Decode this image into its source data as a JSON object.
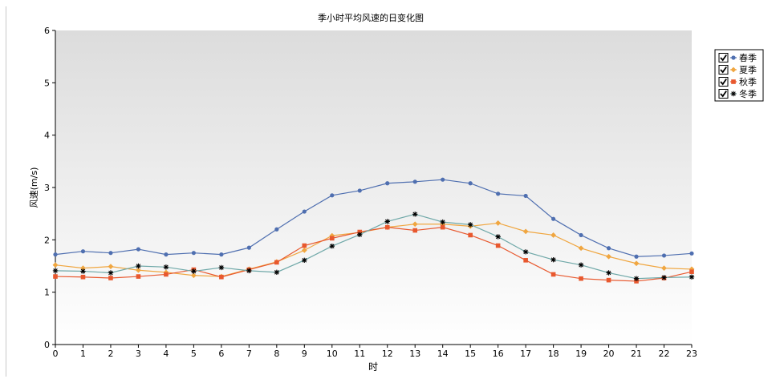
{
  "chart_data": {
    "type": "line",
    "title": "季小时平均风速的日变化图",
    "xlabel": "时",
    "ylabel": "风速(m/s)",
    "x": [
      0,
      1,
      2,
      3,
      4,
      5,
      6,
      7,
      8,
      9,
      10,
      11,
      12,
      13,
      14,
      15,
      16,
      17,
      18,
      19,
      20,
      21,
      22,
      23
    ],
    "xlim": [
      0,
      23
    ],
    "ylim": [
      0,
      6
    ],
    "yticks": [
      0,
      1,
      2,
      3,
      4,
      5,
      6
    ],
    "grid": false,
    "legend_position": "right",
    "background_gradient": [
      "#dcdcdc",
      "#ffffff"
    ],
    "series": [
      {
        "name": "春季",
        "color": "#4f6fb0",
        "marker": "circle",
        "checked": true,
        "values": [
          1.72,
          1.78,
          1.75,
          1.82,
          1.72,
          1.75,
          1.72,
          1.85,
          2.2,
          2.54,
          2.85,
          2.94,
          3.08,
          3.11,
          3.15,
          3.08,
          2.88,
          2.84,
          2.4,
          2.09,
          1.84,
          1.68,
          1.7,
          1.74
        ]
      },
      {
        "name": "夏季",
        "color": "#f0a640",
        "marker": "diamond",
        "checked": true,
        "values": [
          1.52,
          1.46,
          1.49,
          1.42,
          1.38,
          1.32,
          1.3,
          1.44,
          1.58,
          1.8,
          2.08,
          2.14,
          2.24,
          2.3,
          2.3,
          2.26,
          2.32,
          2.16,
          2.09,
          1.84,
          1.68,
          1.55,
          1.46,
          1.44
        ]
      },
      {
        "name": "秋季",
        "color": "#e8582e",
        "marker": "square",
        "checked": true,
        "values": [
          1.3,
          1.29,
          1.27,
          1.3,
          1.34,
          1.43,
          1.29,
          1.43,
          1.57,
          1.89,
          2.03,
          2.15,
          2.24,
          2.18,
          2.24,
          2.09,
          1.89,
          1.61,
          1.34,
          1.26,
          1.23,
          1.21,
          1.27,
          1.39
        ]
      },
      {
        "name": "冬季",
        "color": "#6fa8a8",
        "marker": "star",
        "checked": true,
        "values": [
          1.41,
          1.4,
          1.37,
          1.5,
          1.48,
          1.4,
          1.47,
          1.41,
          1.38,
          1.61,
          1.88,
          2.1,
          2.35,
          2.49,
          2.34,
          2.29,
          2.06,
          1.77,
          1.62,
          1.52,
          1.37,
          1.26,
          1.28,
          1.29
        ]
      }
    ]
  }
}
